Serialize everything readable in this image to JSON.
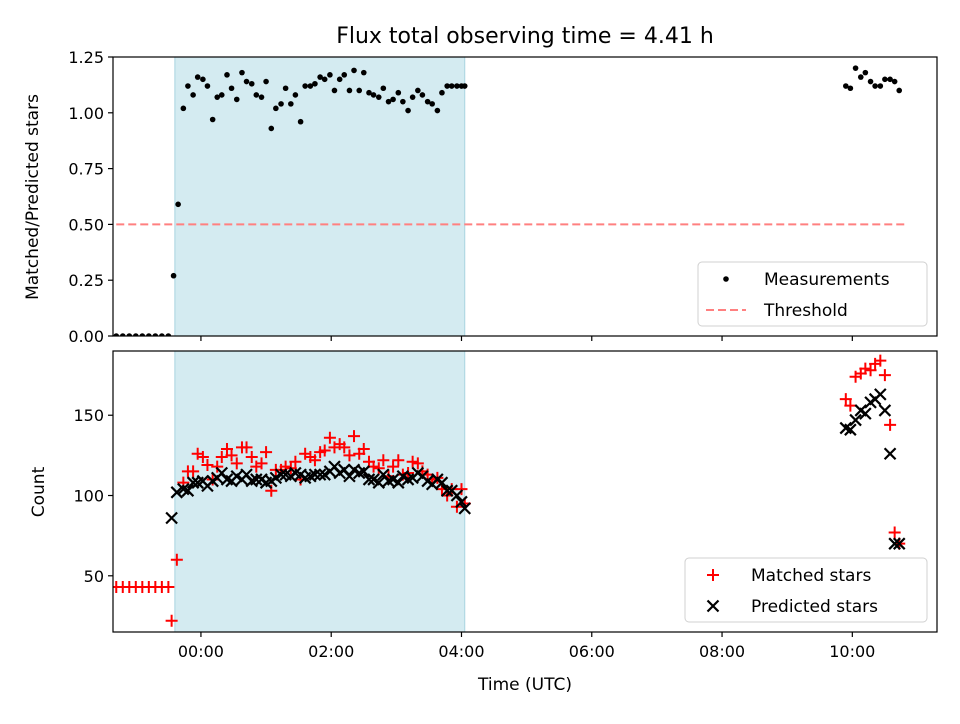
{
  "chart_data": [
    {
      "type": "scatter",
      "title": "Flux total observing time = 4.41 h",
      "xlabel": "",
      "ylabel": "Matched/Predicted stars",
      "xlim": [
        -1.35,
        11.3
      ],
      "ylim": [
        0.0,
        1.25
      ],
      "yticks": [
        0.0,
        0.25,
        0.5,
        0.75,
        1.0,
        1.25
      ],
      "ytick_labels": [
        "0.00",
        "0.25",
        "0.50",
        "0.75",
        "1.00",
        "1.25"
      ],
      "shaded_range": [
        -0.4,
        4.05
      ],
      "shade_color": "#d4ebf1",
      "legend": [
        "Measurements",
        "Threshold"
      ],
      "legend_position": "lower right",
      "threshold": {
        "name": "Threshold",
        "y": 0.5,
        "x_range": [
          -1.3,
          10.8
        ],
        "color": "#ff8080",
        "style": "dashed"
      },
      "series": [
        {
          "name": "Measurements",
          "marker": "dot",
          "color": "#000000",
          "x": [
            -1.3,
            -1.2,
            -1.1,
            -1.0,
            -0.9,
            -0.8,
            -0.7,
            -0.6,
            -0.5,
            -0.42,
            -0.35,
            -0.27,
            -0.2,
            -0.12,
            -0.05,
            0.03,
            0.1,
            0.18,
            0.25,
            0.32,
            0.4,
            0.47,
            0.55,
            0.63,
            0.7,
            0.78,
            0.85,
            0.93,
            1.0,
            1.08,
            1.15,
            1.23,
            1.3,
            1.38,
            1.45,
            1.53,
            1.6,
            1.68,
            1.75,
            1.83,
            1.9,
            1.98,
            2.05,
            2.13,
            2.2,
            2.28,
            2.35,
            2.43,
            2.5,
            2.58,
            2.65,
            2.73,
            2.8,
            2.88,
            2.95,
            3.03,
            3.1,
            3.18,
            3.25,
            3.33,
            3.4,
            3.48,
            3.55,
            3.63,
            3.7,
            3.78,
            3.85,
            3.93,
            4.0,
            4.05,
            9.9,
            9.97,
            10.05,
            10.13,
            10.2,
            10.28,
            10.35,
            10.43,
            10.5,
            10.58,
            10.65,
            10.72
          ],
          "y": [
            0.0,
            0.0,
            0.0,
            0.0,
            0.0,
            0.0,
            0.0,
            0.0,
            0.0,
            0.27,
            0.59,
            1.02,
            1.12,
            1.08,
            1.16,
            1.15,
            1.12,
            0.97,
            1.07,
            1.08,
            1.17,
            1.11,
            1.06,
            1.18,
            1.14,
            1.13,
            1.08,
            1.07,
            1.14,
            0.93,
            1.02,
            1.04,
            1.11,
            1.04,
            1.08,
            0.96,
            1.12,
            1.12,
            1.13,
            1.16,
            1.15,
            1.17,
            1.1,
            1.15,
            1.17,
            1.1,
            1.19,
            1.1,
            1.18,
            1.09,
            1.08,
            1.07,
            1.11,
            1.05,
            1.06,
            1.09,
            1.05,
            1.01,
            1.07,
            1.1,
            1.08,
            1.05,
            1.04,
            1.01,
            1.09,
            1.12,
            1.12,
            1.12,
            1.12,
            1.12,
            1.12,
            1.11,
            1.2,
            1.16,
            1.18,
            1.14,
            1.12,
            1.12,
            1.15,
            1.15,
            1.14,
            1.1
          ]
        }
      ]
    },
    {
      "type": "scatter",
      "title": "",
      "xlabel": "Time (UTC)",
      "ylabel": "Count",
      "xlim": [
        -1.35,
        11.3
      ],
      "ylim": [
        15,
        190
      ],
      "yticks": [
        50,
        100,
        150
      ],
      "ytick_labels": [
        "50",
        "100",
        "150"
      ],
      "xticks": [
        0,
        2,
        4,
        6,
        8,
        10
      ],
      "xtick_labels": [
        "00:00",
        "02:00",
        "04:00",
        "06:00",
        "08:00",
        "10:00"
      ],
      "shaded_range": [
        -0.4,
        4.05
      ],
      "shade_color": "#d4ebf1",
      "legend": [
        "Matched stars",
        "Predicted stars"
      ],
      "legend_position": "lower right",
      "series": [
        {
          "name": "Matched stars",
          "marker": "plus",
          "color": "#ff0000",
          "x": [
            -1.3,
            -1.2,
            -1.1,
            -1.0,
            -0.9,
            -0.8,
            -0.7,
            -0.6,
            -0.5,
            -0.45,
            -0.37,
            -0.27,
            -0.2,
            -0.12,
            -0.05,
            0.03,
            0.1,
            0.18,
            0.25,
            0.32,
            0.4,
            0.47,
            0.55,
            0.63,
            0.7,
            0.78,
            0.85,
            0.93,
            1.0,
            1.08,
            1.15,
            1.23,
            1.3,
            1.38,
            1.45,
            1.53,
            1.6,
            1.68,
            1.75,
            1.83,
            1.9,
            1.98,
            2.05,
            2.13,
            2.2,
            2.28,
            2.35,
            2.43,
            2.5,
            2.58,
            2.65,
            2.73,
            2.8,
            2.88,
            2.95,
            3.03,
            3.1,
            3.18,
            3.25,
            3.33,
            3.4,
            3.48,
            3.55,
            3.63,
            3.7,
            3.78,
            3.85,
            3.93,
            4.0,
            4.05,
            9.9,
            9.97,
            10.05,
            10.13,
            10.2,
            10.28,
            10.35,
            10.43,
            10.5,
            10.58,
            10.65,
            10.72
          ],
          "y": [
            43,
            43,
            43,
            43,
            43,
            43,
            43,
            43,
            43,
            22,
            60,
            108,
            115,
            115,
            126,
            124,
            119,
            110,
            118,
            124,
            129,
            125,
            120,
            130,
            130,
            124,
            118,
            120,
            127,
            103,
            116,
            116,
            118,
            117,
            121,
            110,
            126,
            124,
            122,
            127,
            128,
            136,
            130,
            132,
            130,
            125,
            137,
            126,
            129,
            121,
            118,
            117,
            122,
            112,
            118,
            122,
            113,
            114,
            121,
            120,
            115,
            113,
            110,
            111,
            104,
            100,
            104,
            93,
            104,
            95,
            160,
            156,
            174,
            176,
            179,
            178,
            182,
            184,
            175,
            144,
            77,
            70
          ]
        },
        {
          "name": "Predicted stars",
          "marker": "x",
          "color": "#000000",
          "x": [
            -0.45,
            -0.37,
            -0.27,
            -0.2,
            -0.12,
            -0.05,
            0.03,
            0.1,
            0.18,
            0.25,
            0.32,
            0.4,
            0.47,
            0.55,
            0.63,
            0.7,
            0.78,
            0.85,
            0.93,
            1.0,
            1.08,
            1.15,
            1.23,
            1.3,
            1.38,
            1.45,
            1.53,
            1.6,
            1.68,
            1.75,
            1.83,
            1.9,
            1.98,
            2.05,
            2.13,
            2.2,
            2.28,
            2.35,
            2.43,
            2.5,
            2.58,
            2.65,
            2.73,
            2.8,
            2.88,
            2.95,
            3.03,
            3.1,
            3.18,
            3.25,
            3.33,
            3.4,
            3.48,
            3.55,
            3.63,
            3.7,
            3.78,
            3.85,
            3.93,
            4.0,
            4.05,
            9.9,
            9.97,
            10.05,
            10.13,
            10.2,
            10.28,
            10.35,
            10.43,
            10.5,
            10.58,
            10.65,
            10.72
          ],
          "y": [
            86,
            102,
            104,
            103,
            108,
            108,
            109,
            106,
            109,
            111,
            114,
            110,
            109,
            112,
            110,
            113,
            109,
            110,
            110,
            108,
            109,
            111,
            113,
            113,
            112,
            114,
            113,
            111,
            112,
            113,
            113,
            113,
            115,
            118,
            114,
            116,
            112,
            116,
            114,
            115,
            110,
            110,
            108,
            113,
            109,
            110,
            108,
            112,
            110,
            111,
            114,
            112,
            109,
            107,
            110,
            108,
            103,
            103,
            100,
            96,
            92,
            142,
            141,
            147,
            153,
            151,
            158,
            160,
            163,
            153,
            126,
            70,
            70
          ]
        }
      ]
    }
  ]
}
